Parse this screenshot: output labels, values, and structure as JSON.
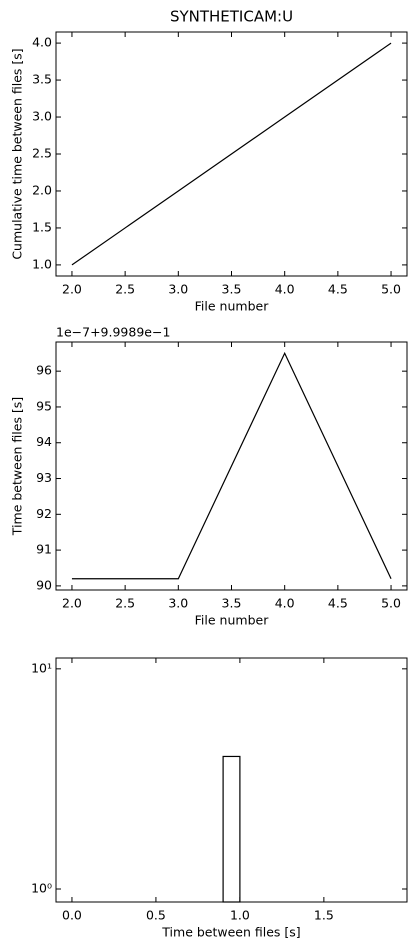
{
  "chart_data": [
    {
      "type": "line",
      "title": "SYNTHETICAM:U",
      "x_label": "File number",
      "y_label": "Cumulative time between files [s]",
      "x": [
        2,
        3,
        4,
        5
      ],
      "values": [
        1,
        2,
        3,
        4
      ],
      "color": "#000000",
      "xlim": [
        1.85,
        5.15
      ],
      "ylim": [
        0.85,
        4.15
      ],
      "xticks": [
        {
          "value": 2,
          "label": "2.0"
        },
        {
          "value": 2.5,
          "label": "2.5"
        },
        {
          "value": 3,
          "label": "3.0"
        },
        {
          "value": 3.5,
          "label": "3.5"
        },
        {
          "value": 4,
          "label": "4.0"
        },
        {
          "value": 4.5,
          "label": "4.5"
        },
        {
          "value": 5,
          "label": "5.0"
        }
      ],
      "yticks": [
        {
          "value": 1,
          "label": "1.0"
        },
        {
          "value": 1.5,
          "label": "1.5"
        },
        {
          "value": 2,
          "label": "2.0"
        },
        {
          "value": 2.5,
          "label": "2.5"
        },
        {
          "value": 3,
          "label": "3.0"
        },
        {
          "value": 3.5,
          "label": "3.5"
        },
        {
          "value": 4,
          "label": "4.0"
        }
      ]
    },
    {
      "type": "line",
      "offset_label": "1e−7+9.9989e−1",
      "x_label": "File number",
      "y_label": "Time between files [s]",
      "x": [
        2,
        3,
        4,
        5
      ],
      "values": [
        90.2,
        90.2,
        96.5,
        90.2
      ],
      "color": "#000000",
      "xlim": [
        1.85,
        5.15
      ],
      "ylim": [
        89.885,
        96.815
      ],
      "xticks": [
        {
          "value": 2,
          "label": "2.0"
        },
        {
          "value": 2.5,
          "label": "2.5"
        },
        {
          "value": 3,
          "label": "3.0"
        },
        {
          "value": 3.5,
          "label": "3.5"
        },
        {
          "value": 4,
          "label": "4.0"
        },
        {
          "value": 4.5,
          "label": "4.5"
        },
        {
          "value": 5,
          "label": "5.0"
        }
      ],
      "yticks": [
        90,
        91,
        92,
        93,
        94,
        95,
        96
      ]
    },
    {
      "type": "histogram",
      "x_label": "Time between files [s]",
      "bins": [
        0.9,
        1.0
      ],
      "values": [
        4
      ],
      "color": "#000000",
      "log_y": true,
      "xlim": [
        -0.095,
        1.995
      ],
      "ylim": [
        0.873,
        11.2
      ],
      "xticks": [
        {
          "value": 0,
          "label": "0.0"
        },
        {
          "value": 0.5,
          "label": "0.5"
        },
        {
          "value": 1,
          "label": "1.0"
        },
        {
          "value": 1.5,
          "label": "1.5"
        }
      ],
      "yticks": [
        {
          "value": 1,
          "label": "10⁰"
        },
        {
          "value": 10,
          "label": "10¹"
        }
      ]
    }
  ]
}
